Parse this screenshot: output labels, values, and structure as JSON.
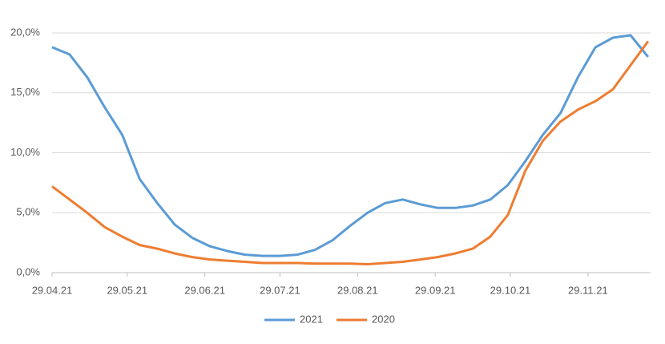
{
  "chart_data": {
    "type": "line",
    "x": [
      "29.04.21",
      "06.05.21",
      "13.05.21",
      "20.05.21",
      "27.05.21",
      "03.06.21",
      "10.06.21",
      "17.06.21",
      "24.06.21",
      "01.07.21",
      "08.07.21",
      "15.07.21",
      "22.07.21",
      "29.07.21",
      "05.08.21",
      "12.08.21",
      "19.08.21",
      "26.08.21",
      "02.09.21",
      "09.09.21",
      "16.09.21",
      "23.09.21",
      "30.09.21",
      "07.10.21",
      "14.10.21",
      "21.10.21",
      "28.10.21",
      "04.11.21",
      "11.11.21",
      "18.11.21",
      "25.11.21",
      "02.12.21",
      "09.12.21",
      "16.12.21",
      "23.12.21"
    ],
    "series": [
      {
        "name": "2021",
        "color": "#5b9bd5",
        "values": [
          18.8,
          18.2,
          16.3,
          13.8,
          11.5,
          7.8,
          5.8,
          4.0,
          2.9,
          2.2,
          1.8,
          1.5,
          1.4,
          1.4,
          1.5,
          1.9,
          2.7,
          3.9,
          5.0,
          5.8,
          6.1,
          5.7,
          5.4,
          5.4,
          5.6,
          6.1,
          7.3,
          9.3,
          11.5,
          13.3,
          16.3,
          18.8,
          19.6,
          19.8,
          18.0
        ]
      },
      {
        "name": "2020",
        "color": "#ed7d31",
        "values": [
          7.2,
          6.1,
          5.0,
          3.8,
          3.0,
          2.3,
          2.0,
          1.6,
          1.3,
          1.1,
          1.0,
          0.9,
          0.8,
          0.8,
          0.8,
          0.75,
          0.75,
          0.75,
          0.7,
          0.8,
          0.9,
          1.1,
          1.3,
          1.6,
          2.0,
          3.0,
          4.8,
          8.5,
          11.0,
          12.6,
          13.6,
          14.3,
          15.3,
          17.3,
          19.3
        ]
      }
    ],
    "xlim": [
      "29.04.21",
      "24.12.21"
    ],
    "xticks": [
      "29.04.21",
      "29.05.21",
      "29.06.21",
      "29.07.21",
      "29.08.21",
      "29.09.21",
      "29.10.21",
      "29.11.21"
    ],
    "ylim": [
      0,
      20
    ],
    "yticks": [
      {
        "value": 0,
        "label": "0,0%"
      },
      {
        "value": 5,
        "label": "5,0%"
      },
      {
        "value": 10,
        "label": "10,0%"
      },
      {
        "value": 15,
        "label": "15,0%"
      },
      {
        "value": 20,
        "label": "20,0%"
      }
    ],
    "grid": true,
    "legend": "bottom"
  }
}
